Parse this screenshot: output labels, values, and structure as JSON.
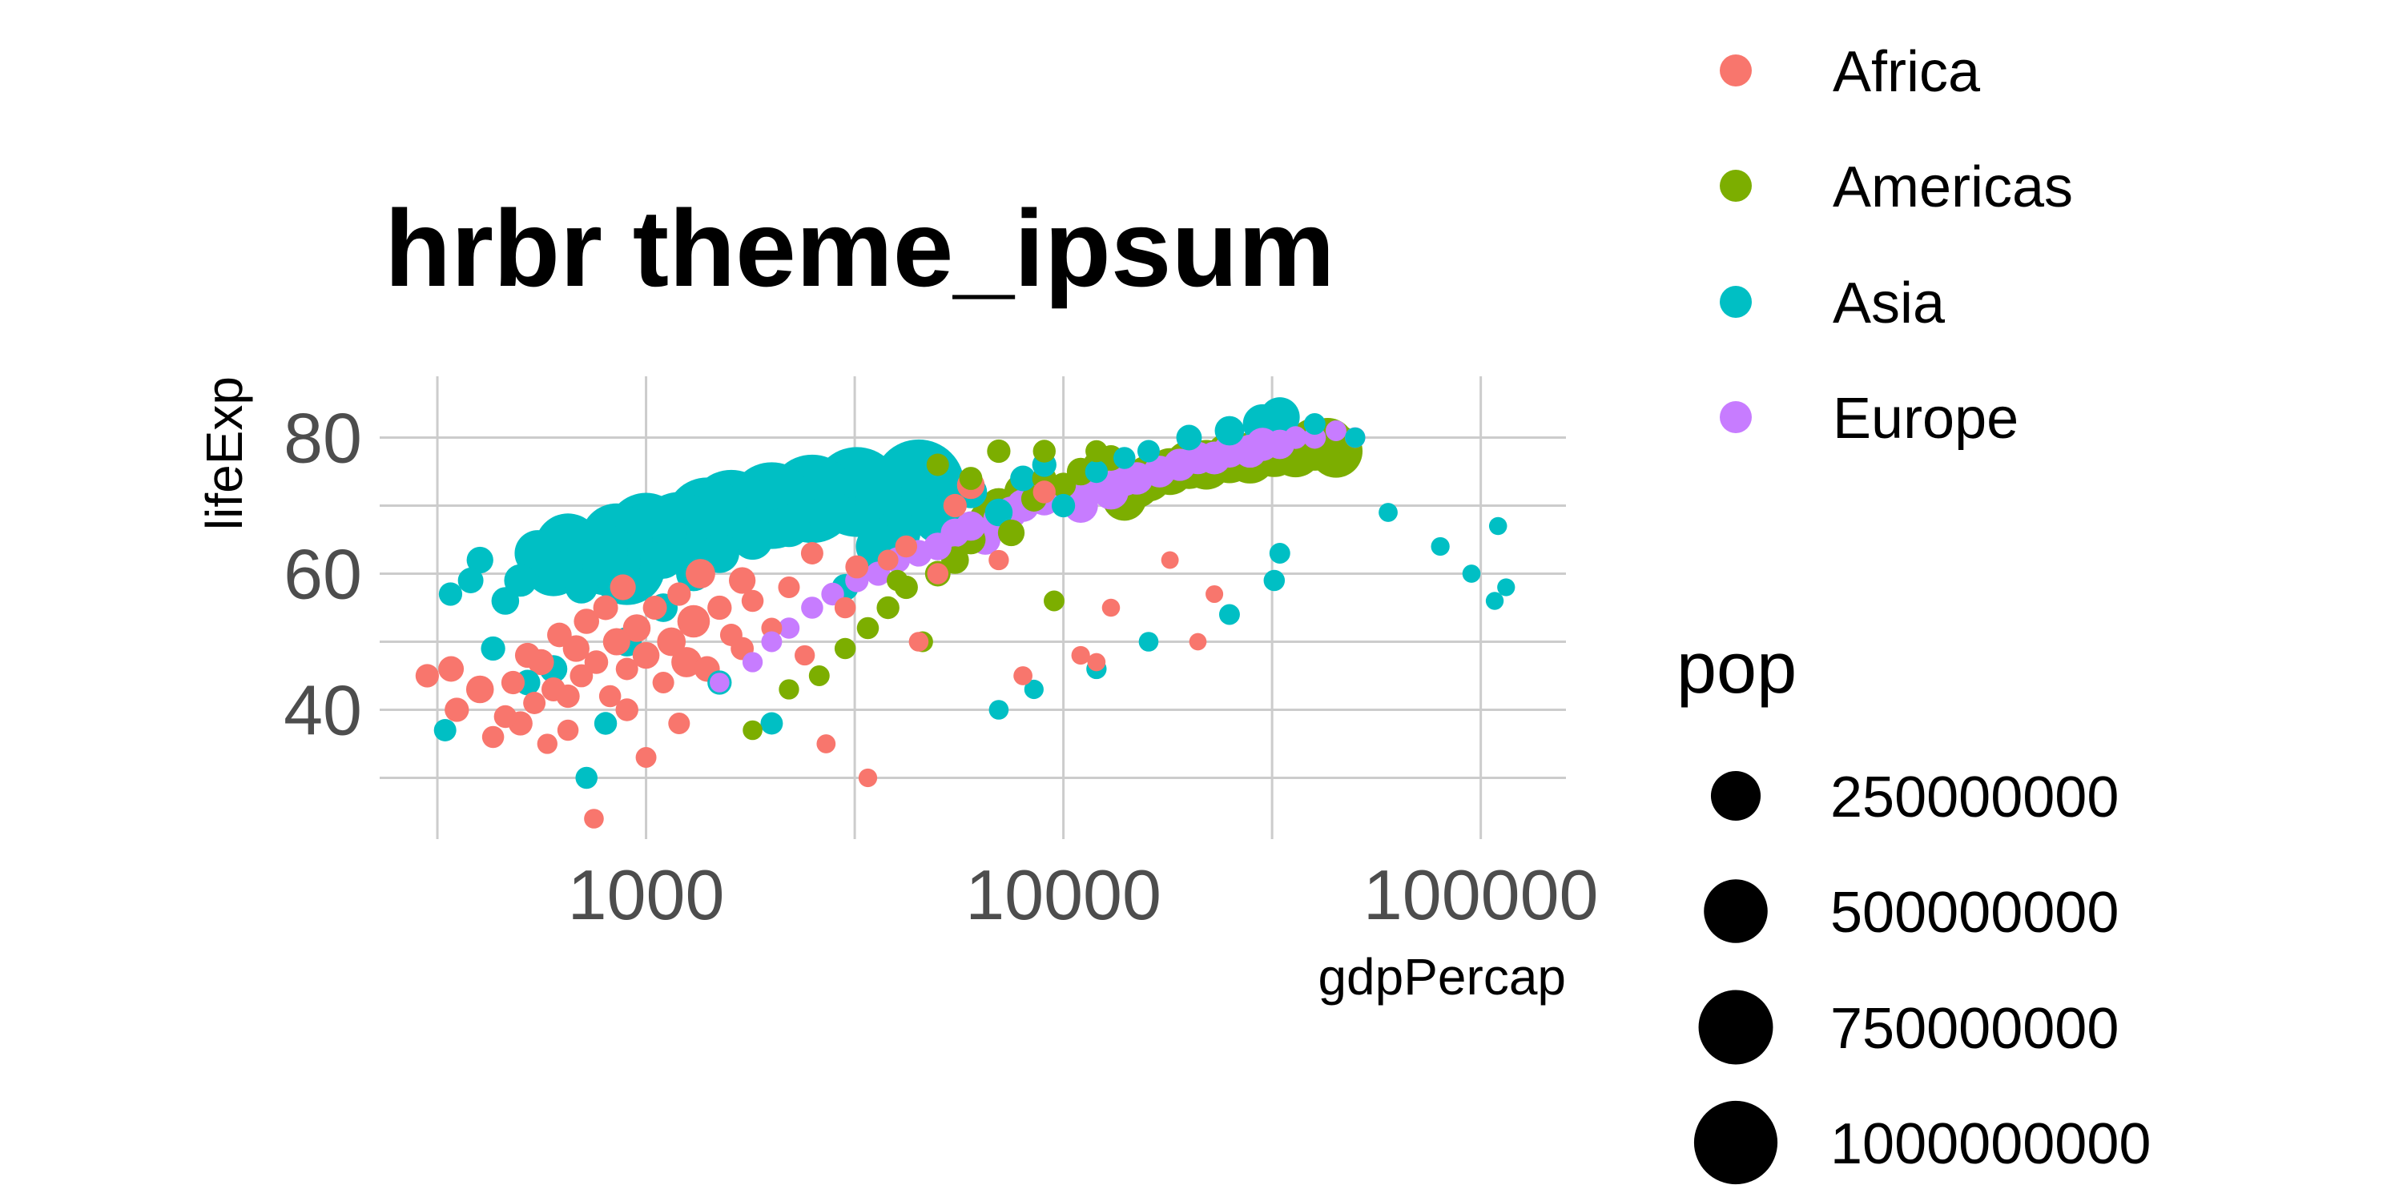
{
  "chart_data": {
    "type": "scatter",
    "title": "hrbr theme_ipsum",
    "xlabel": "gdpPercap",
    "ylabel": "lifeExp",
    "x_scale": "log10",
    "xlim": [
      230,
      160000
    ],
    "ylim": [
      21,
      89
    ],
    "x_ticks": [
      1000,
      10000,
      100000
    ],
    "x_tick_labels": [
      "1000",
      "10000",
      "100000"
    ],
    "y_ticks": [
      40,
      60,
      80
    ],
    "y_tick_labels": [
      "40",
      "60",
      "80"
    ],
    "grid": true,
    "color_legend": {
      "title": "",
      "position": "right",
      "entries": [
        {
          "label": "Africa",
          "color": "#F8766D"
        },
        {
          "label": "Americas",
          "color": "#7CAE00"
        },
        {
          "label": "Asia",
          "color": "#00BFC4"
        },
        {
          "label": "Europe",
          "color": "#C77CFF"
        }
      ]
    },
    "size_legend": {
      "title": "pop",
      "position": "right",
      "entries": [
        {
          "label": "250000000",
          "value": 250000000
        },
        {
          "label": "500000000",
          "value": 500000000
        },
        {
          "label": "750000000",
          "value": 750000000
        },
        {
          "label": "1000000000",
          "value": 1000000000
        }
      ]
    },
    "series": [
      {
        "name": "Africa",
        "color": "#F8766D",
        "points": [
          [
            299,
            45,
            12000000
          ],
          [
            341,
            46,
            20000000
          ],
          [
            352,
            40,
            15000000
          ],
          [
            400,
            43,
            30000000
          ],
          [
            430,
            36,
            8000000
          ],
          [
            460,
            39,
            10000000
          ],
          [
            480,
            44,
            12000000
          ],
          [
            500,
            38,
            15000000
          ],
          [
            520,
            48,
            18000000
          ],
          [
            540,
            41,
            9000000
          ],
          [
            560,
            47,
            22000000
          ],
          [
            600,
            43,
            14000000
          ],
          [
            620,
            51,
            16000000
          ],
          [
            650,
            37,
            6000000
          ],
          [
            680,
            49,
            25000000
          ],
          [
            700,
            45,
            11000000
          ],
          [
            720,
            53,
            19000000
          ],
          [
            750,
            24,
            3000000
          ],
          [
            760,
            47,
            13000000
          ],
          [
            800,
            55,
            17000000
          ],
          [
            820,
            42,
            8000000
          ],
          [
            850,
            50,
            28000000
          ],
          [
            880,
            58,
            21000000
          ],
          [
            900,
            46,
            9000000
          ],
          [
            950,
            52,
            30000000
          ],
          [
            1000,
            48,
            26000000
          ],
          [
            1050,
            55,
            14000000
          ],
          [
            1100,
            44,
            7000000
          ],
          [
            1150,
            50,
            35000000
          ],
          [
            1200,
            57,
            12000000
          ],
          [
            1250,
            47,
            45000000
          ],
          [
            1300,
            53,
            60000000
          ],
          [
            1400,
            46,
            20000000
          ],
          [
            1500,
            55,
            15000000
          ],
          [
            1600,
            51,
            9000000
          ],
          [
            1700,
            49,
            11000000
          ],
          [
            1800,
            56,
            8000000
          ],
          [
            2000,
            52,
            5000000
          ],
          [
            2200,
            58,
            7000000
          ],
          [
            2400,
            48,
            4000000
          ],
          [
            2700,
            35,
            2000000
          ],
          [
            3000,
            55,
            6000000
          ],
          [
            3400,
            30,
            1500000
          ],
          [
            3800,
            62,
            5000000
          ],
          [
            4200,
            64,
            8000000
          ],
          [
            4500,
            50,
            3000000
          ],
          [
            5000,
            60,
            6000000
          ],
          [
            5500,
            70,
            12000000
          ],
          [
            6000,
            73,
            30000000
          ],
          [
            7000,
            62,
            4000000
          ],
          [
            8000,
            45,
            2000000
          ],
          [
            9000,
            72,
            10000000
          ],
          [
            11000,
            48,
            1500000
          ],
          [
            12000,
            47,
            1000000
          ],
          [
            13000,
            55,
            900000
          ],
          [
            18000,
            62,
            500000
          ],
          [
            21000,
            50,
            400000
          ],
          [
            23000,
            57,
            600000
          ],
          [
            1000,
            33,
            5000000
          ],
          [
            1200,
            38,
            7000000
          ],
          [
            650,
            42,
            12000000
          ],
          [
            580,
            35,
            4000000
          ],
          [
            1350,
            60,
            40000000
          ],
          [
            1700,
            59,
            25000000
          ],
          [
            2500,
            63,
            9000000
          ],
          [
            3200,
            61,
            11000000
          ],
          [
            900,
            40,
            10000000
          ]
        ]
      },
      {
        "name": "Americas",
        "color": "#7CAE00",
        "points": [
          [
            1800,
            37,
            3000000
          ],
          [
            2200,
            43,
            4000000
          ],
          [
            2600,
            45,
            5000000
          ],
          [
            3000,
            49,
            6000000
          ],
          [
            3400,
            52,
            8000000
          ],
          [
            3800,
            55,
            10000000
          ],
          [
            4200,
            58,
            12000000
          ],
          [
            4600,
            50,
            5000000
          ],
          [
            5000,
            60,
            20000000
          ],
          [
            5500,
            62,
            30000000
          ],
          [
            6000,
            65,
            40000000
          ],
          [
            6500,
            68,
            60000000
          ],
          [
            7000,
            70,
            80000000
          ],
          [
            7500,
            66,
            25000000
          ],
          [
            8000,
            72,
            100000000
          ],
          [
            8500,
            71,
            20000000
          ],
          [
            9000,
            74,
            15000000
          ],
          [
            10000,
            73,
            18000000
          ],
          [
            11000,
            75,
            30000000
          ],
          [
            12000,
            76,
            25000000
          ],
          [
            13000,
            77,
            20000000
          ],
          [
            14000,
            71,
            170000000
          ],
          [
            15000,
            73,
            190000000
          ],
          [
            16000,
            74,
            200000000
          ],
          [
            18000,
            75,
            210000000
          ],
          [
            20000,
            76,
            230000000
          ],
          [
            22000,
            76,
            250000000
          ],
          [
            25000,
            77,
            260000000
          ],
          [
            28000,
            77,
            270000000
          ],
          [
            32000,
            78,
            280000000
          ],
          [
            36000,
            78,
            290000000
          ],
          [
            40000,
            79,
            295000000
          ],
          [
            43000,
            79,
            300000000
          ],
          [
            45000,
            78,
            301000000
          ],
          [
            7000,
            78,
            12000000
          ],
          [
            9000,
            78,
            10000000
          ],
          [
            12000,
            78,
            8000000
          ],
          [
            5000,
            76,
            9000000
          ],
          [
            6000,
            74,
            11000000
          ],
          [
            4000,
            59,
            6000000
          ],
          [
            9500,
            56,
            5000000
          ]
        ]
      },
      {
        "name": "Asia",
        "color": "#00BFC4",
        "points": [
          [
            330,
            37,
            9000000
          ],
          [
            340,
            57,
            12000000
          ],
          [
            380,
            59,
            20000000
          ],
          [
            400,
            62,
            25000000
          ],
          [
            430,
            49,
            15000000
          ],
          [
            460,
            56,
            30000000
          ],
          [
            500,
            59,
            60000000
          ],
          [
            550,
            63,
            200000000
          ],
          [
            600,
            61,
            400000000
          ],
          [
            650,
            64,
            550000000
          ],
          [
            700,
            58,
            60000000
          ],
          [
            750,
            63,
            600000000
          ],
          [
            800,
            62,
            650000000
          ],
          [
            850,
            65,
            700000000
          ],
          [
            900,
            61,
            800000000
          ],
          [
            1000,
            66,
            900000000
          ],
          [
            1100,
            62,
            100000000
          ],
          [
            1200,
            66,
            950000000
          ],
          [
            1300,
            60,
            80000000
          ],
          [
            1400,
            68,
            1000000000
          ],
          [
            1500,
            63,
            120000000
          ],
          [
            1600,
            69,
            1050000000
          ],
          [
            1800,
            65,
            130000000
          ],
          [
            2000,
            70,
            1100000000
          ],
          [
            2200,
            67,
            150000000
          ],
          [
            2500,
            71,
            1150000000
          ],
          [
            2800,
            69,
            170000000
          ],
          [
            3200,
            72,
            1200000000
          ],
          [
            3600,
            64,
            180000000
          ],
          [
            4000,
            66,
            200000000
          ],
          [
            4500,
            73,
            1250000000
          ],
          [
            5000,
            68,
            220000000
          ],
          [
            6000,
            72,
            60000000
          ],
          [
            7000,
            69,
            30000000
          ],
          [
            8000,
            74,
            20000000
          ],
          [
            9000,
            76,
            15000000
          ],
          [
            10000,
            70,
            12000000
          ],
          [
            12000,
            75,
            10000000
          ],
          [
            14000,
            77,
            8000000
          ],
          [
            16000,
            78,
            9000000
          ],
          [
            20000,
            80,
            20000000
          ],
          [
            25000,
            81,
            40000000
          ],
          [
            30000,
            82,
            120000000
          ],
          [
            33000,
            83,
            125000000
          ],
          [
            40000,
            82,
            7000000
          ],
          [
            50000,
            80,
            4000000
          ],
          [
            60000,
            69,
            2000000
          ],
          [
            80000,
            64,
            1500000
          ],
          [
            95000,
            60,
            1000000
          ],
          [
            108000,
            56,
            800000
          ],
          [
            110000,
            67,
            900000
          ],
          [
            115000,
            58,
            700000
          ],
          [
            7000,
            40,
            3000000
          ],
          [
            8500,
            43,
            2500000
          ],
          [
            16000,
            50,
            3000000
          ],
          [
            12000,
            46,
            4000000
          ],
          [
            25000,
            54,
            5000000
          ],
          [
            32000,
            59,
            6000000
          ],
          [
            33000,
            63,
            5000000
          ],
          [
            720,
            30,
            8000000
          ],
          [
            800,
            38,
            10000000
          ],
          [
            1500,
            44,
            15000000
          ],
          [
            2000,
            38,
            9000000
          ],
          [
            520,
            44,
            20000000
          ],
          [
            600,
            46,
            30000000
          ],
          [
            900,
            50,
            40000000
          ],
          [
            1100,
            55,
            35000000
          ],
          [
            3000,
            58,
            25000000
          ]
        ]
      },
      {
        "name": "Europe",
        "color": "#C77CFF",
        "points": [
          [
            1500,
            44,
            3000000
          ],
          [
            1800,
            47,
            4000000
          ],
          [
            2000,
            50,
            5000000
          ],
          [
            2200,
            52,
            6000000
          ],
          [
            2500,
            55,
            8000000
          ],
          [
            2800,
            57,
            10000000
          ],
          [
            3200,
            59,
            12000000
          ],
          [
            3600,
            60,
            15000000
          ],
          [
            4000,
            62,
            20000000
          ],
          [
            4500,
            63,
            25000000
          ],
          [
            5000,
            64,
            30000000
          ],
          [
            5500,
            66,
            35000000
          ],
          [
            6000,
            67,
            40000000
          ],
          [
            6500,
            65,
            45000000
          ],
          [
            7000,
            68,
            50000000
          ],
          [
            7500,
            69,
            55000000
          ],
          [
            8000,
            70,
            60000000
          ],
          [
            9000,
            71,
            65000000
          ],
          [
            10000,
            72,
            70000000
          ],
          [
            11000,
            70,
            75000000
          ],
          [
            12000,
            73,
            78000000
          ],
          [
            13000,
            72,
            80000000
          ],
          [
            14000,
            74,
            82000000
          ],
          [
            15000,
            74,
            60000000
          ],
          [
            17000,
            75,
            55000000
          ],
          [
            19000,
            76,
            58000000
          ],
          [
            21000,
            77,
            60000000
          ],
          [
            23000,
            77,
            62000000
          ],
          [
            25000,
            78,
            63000000
          ],
          [
            28000,
            78,
            64000000
          ],
          [
            30000,
            79,
            65000000
          ],
          [
            33000,
            79,
            40000000
          ],
          [
            36000,
            80,
            10000000
          ],
          [
            40000,
            80,
            9000000
          ],
          [
            45000,
            81,
            5000000
          ],
          [
            50000,
            80,
            4500000
          ]
        ]
      }
    ]
  }
}
